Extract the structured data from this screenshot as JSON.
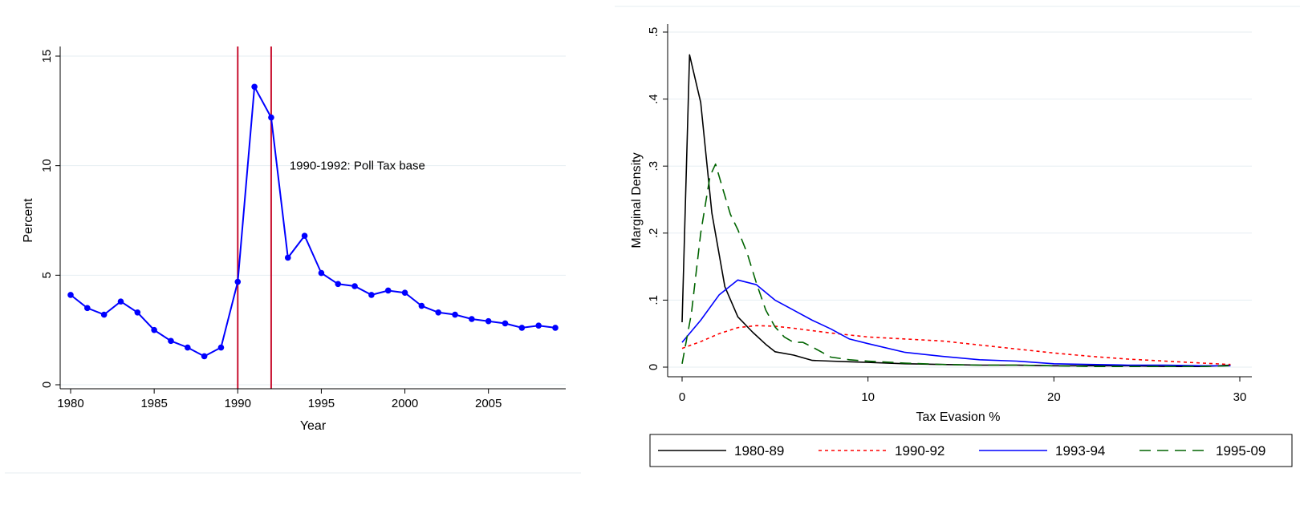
{
  "chart_data": [
    {
      "type": "line",
      "xlabel": "Year",
      "ylabel": "Percent",
      "xlim": [
        1980,
        2009
      ],
      "ylim": [
        0,
        15
      ],
      "xticks": [
        "1980",
        "1985",
        "1990",
        "1995",
        "2000",
        "2005"
      ],
      "yticks": [
        "0",
        "5",
        "10",
        "15"
      ],
      "grid": true,
      "x": [
        1980,
        1981,
        1982,
        1983,
        1984,
        1985,
        1986,
        1987,
        1988,
        1989,
        1990,
        1991,
        1992,
        1993,
        1994,
        1995,
        1996,
        1997,
        1998,
        1999,
        2000,
        2001,
        2002,
        2003,
        2004,
        2005,
        2006,
        2007,
        2008,
        2009
      ],
      "values": [
        4.1,
        3.5,
        3.2,
        3.8,
        3.3,
        2.5,
        2.0,
        1.7,
        1.3,
        1.7,
        4.7,
        13.6,
        12.2,
        5.8,
        6.8,
        5.1,
        4.6,
        4.5,
        4.1,
        4.3,
        4.2,
        3.6,
        3.3,
        3.2,
        3.0,
        2.9,
        2.8,
        2.6,
        2.7,
        2.6
      ],
      "series_color": "#0000ff",
      "vlines": [
        1990,
        1992
      ],
      "vline_color": "#c8102e",
      "annotation": {
        "text": "1990-1992: Poll Tax base",
        "x": 1993.1,
        "y": 10.0
      }
    },
    {
      "type": "line",
      "xlabel": "Tax Evasion %",
      "ylabel": "Marginal Density",
      "xlim": [
        0,
        30
      ],
      "ylim": [
        0,
        0.5
      ],
      "xticks": [
        "0",
        "10",
        "20",
        "30"
      ],
      "yticks": [
        "0",
        ".1",
        ".2",
        ".3",
        ".4",
        ".5"
      ],
      "grid": true,
      "legend_position": "bottom",
      "series": [
        {
          "name": "1980-89",
          "color": "#000000",
          "dash": "solid",
          "x": [
            0,
            0.4,
            1.0,
            1.6,
            2.3,
            3.0,
            3.8,
            4.5,
            5.0,
            6.0,
            7.0,
            8.0,
            9.0,
            10.0,
            12.0,
            14.0,
            16.0,
            18.0,
            20.0,
            22.0,
            24.0,
            26.0,
            28.0,
            29.5
          ],
          "values": [
            0.067,
            0.466,
            0.395,
            0.23,
            0.12,
            0.075,
            0.052,
            0.034,
            0.023,
            0.018,
            0.01,
            0.009,
            0.008,
            0.007,
            0.005,
            0.004,
            0.003,
            0.003,
            0.002,
            0.002,
            0.002,
            0.001,
            0.001,
            0.003
          ]
        },
        {
          "name": "1990-92",
          "color": "#ff0000",
          "dash": "dotted",
          "x": [
            0,
            1.0,
            2.0,
            3.0,
            4.0,
            5.0,
            6.0,
            8.0,
            10.0,
            12.0,
            14.0,
            16.0,
            18.0,
            20.0,
            22.0,
            24.0,
            26.0,
            28.0,
            29.5
          ],
          "values": [
            0.028,
            0.038,
            0.05,
            0.059,
            0.062,
            0.061,
            0.058,
            0.051,
            0.045,
            0.042,
            0.039,
            0.033,
            0.027,
            0.021,
            0.016,
            0.012,
            0.009,
            0.006,
            0.004
          ]
        },
        {
          "name": "1993-94",
          "color": "#0000ff",
          "dash": "solid",
          "x": [
            0,
            1.0,
            2.0,
            3.0,
            4.0,
            5.0,
            6.0,
            7.0,
            8.0,
            9.0,
            10.0,
            12.0,
            14.0,
            16.0,
            18.0,
            20.0,
            22.0,
            24.0,
            26.0,
            28.0,
            29.5
          ],
          "values": [
            0.037,
            0.07,
            0.108,
            0.13,
            0.123,
            0.1,
            0.085,
            0.07,
            0.057,
            0.042,
            0.035,
            0.022,
            0.016,
            0.011,
            0.009,
            0.005,
            0.004,
            0.003,
            0.003,
            0.002,
            0.002
          ]
        },
        {
          "name": "1995-09",
          "color": "#006400",
          "dash": "dashed",
          "x": [
            0,
            0.5,
            1.0,
            1.5,
            1.8,
            2.2,
            2.6,
            3.0,
            3.5,
            4.0,
            4.5,
            5.0,
            5.5,
            6.0,
            6.5,
            7.0,
            8.0,
            9.0,
            10.0,
            12.0,
            14.0,
            16.0,
            18.0,
            20.0,
            22.0,
            24.0,
            26.0,
            28.0,
            29.5
          ],
          "values": [
            0.005,
            0.08,
            0.2,
            0.285,
            0.303,
            0.265,
            0.228,
            0.205,
            0.17,
            0.125,
            0.085,
            0.06,
            0.045,
            0.037,
            0.037,
            0.03,
            0.015,
            0.011,
            0.009,
            0.006,
            0.004,
            0.003,
            0.003,
            0.002,
            0.001,
            0.001,
            0.001,
            0.001,
            0.002
          ]
        }
      ]
    }
  ]
}
